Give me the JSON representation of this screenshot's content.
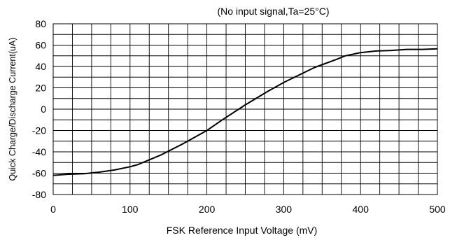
{
  "chart_data": {
    "type": "line",
    "title": "(No input signal,Ta=25°C)",
    "xlabel": "FSK Reference Input Voltage (mV)",
    "ylabel": "Quick Charge/Discharge Current(uA)",
    "xlim": [
      0,
      500
    ],
    "ylim": [
      -80,
      80
    ],
    "x_ticks": [
      0,
      100,
      200,
      300,
      400,
      500
    ],
    "x_tick_labels": [
      "0",
      "100",
      "200",
      "300",
      "400",
      "500"
    ],
    "y_ticks": [
      80,
      60,
      40,
      20,
      0,
      -20,
      -40,
      -60,
      -80
    ],
    "y_tick_labels": [
      "80",
      "60",
      "40",
      "20",
      "0",
      "-20",
      "-40",
      "-60",
      "-80"
    ],
    "grid": true,
    "series": [
      {
        "color": "#000000",
        "x": [
          0,
          20,
          40,
          60,
          80,
          100,
          110,
          140,
          170,
          200,
          220,
          250,
          280,
          300,
          340,
          370,
          380,
          400,
          420,
          440,
          460,
          480,
          500
        ],
        "y": [
          -62,
          -61,
          -60.5,
          -59,
          -57,
          -54,
          -52,
          -43,
          -32,
          -20,
          -10,
          4,
          17,
          25,
          39,
          47,
          50,
          53,
          54.5,
          55,
          56,
          56,
          56.5
        ]
      }
    ]
  }
}
